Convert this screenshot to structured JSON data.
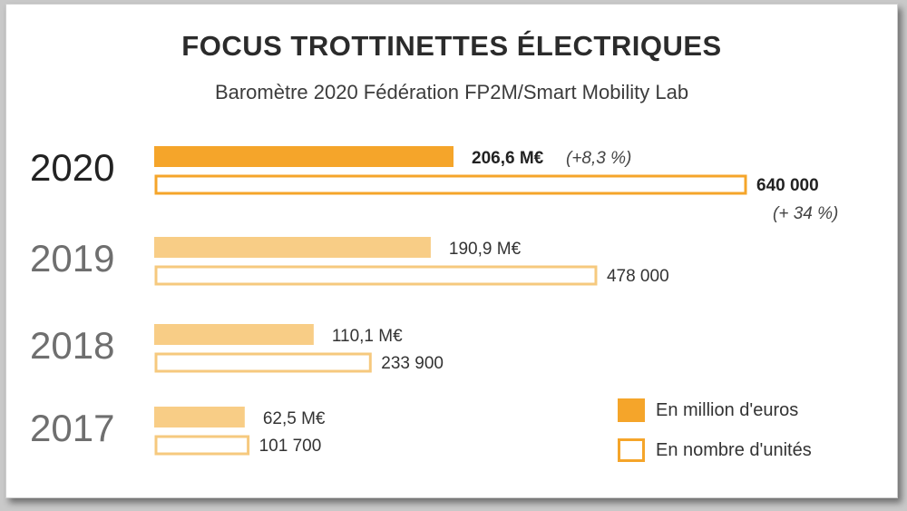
{
  "title": "FOCUS TROTTINETTES ÉLECTRIQUES",
  "subtitle": "Baromètre 2020 Fédération FP2M/Smart Mobility Lab",
  "colors": {
    "orange": "#f5a52a",
    "orange_light": "#f8cd86",
    "outline_2020": "#f5a52a",
    "outline_light": "#f6c97e",
    "year_dark": "#222222",
    "year_grey": "#6f6f6f"
  },
  "legend": {
    "million": "En million d'euros",
    "units": "En nombre d'unités"
  },
  "chart_data": {
    "type": "bar",
    "orientation": "horizontal",
    "categories": [
      "2020",
      "2019",
      "2018",
      "2017"
    ],
    "series": [
      {
        "name": "En million d'euros",
        "values": [
          206.6,
          190.9,
          110.1,
          62.5
        ],
        "labels": [
          "206,6 M€",
          "190,9 M€",
          "110,1 M€",
          "62,5 M€"
        ]
      },
      {
        "name": "En nombre d'unités",
        "values": [
          640000,
          478000,
          233900,
          101700
        ],
        "labels": [
          "640 000",
          "478 000",
          "233 900",
          "101 700"
        ]
      }
    ],
    "annotations": {
      "million_2020": "(+8,3 %)",
      "units_2020": "(+ 34 %)"
    },
    "grid": false,
    "legend_position": "bottom-right"
  }
}
